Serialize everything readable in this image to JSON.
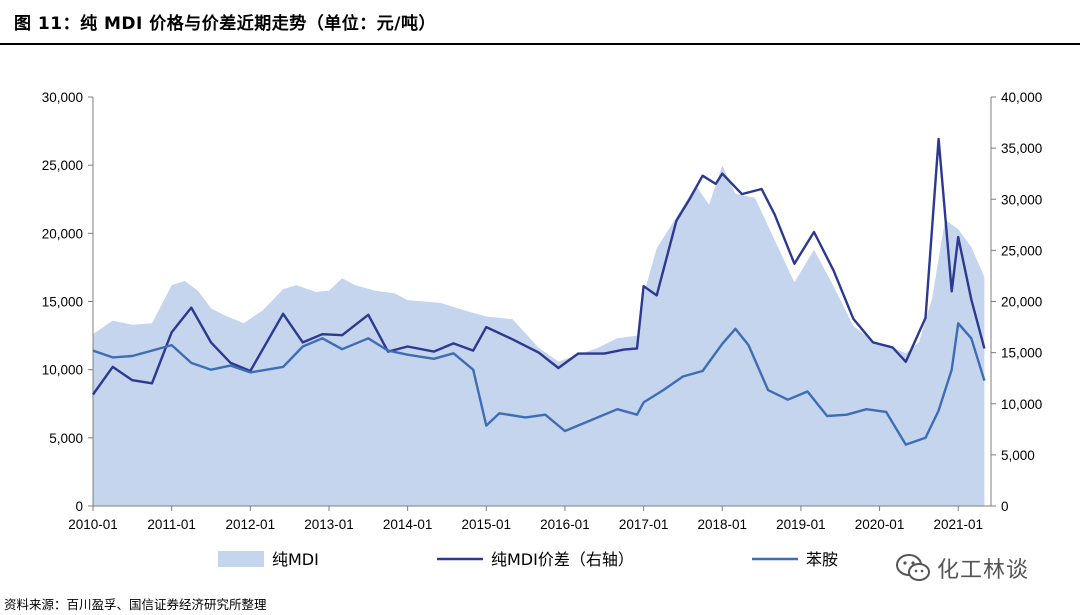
{
  "header": {
    "title": "图 11：纯 MDI 价格与价差近期走势（单位：元/吨）"
  },
  "footer": {
    "source": "资料来源：百川盈孚、国信证券经济研究所整理"
  },
  "watermark": {
    "text": "化工林谈",
    "icon": "wechat-icon"
  },
  "colors": {
    "area": "#c5d5ee",
    "spread": "#2b3990",
    "aniline": "#3f6db3",
    "axis": "#7f7f7f"
  },
  "chart_data": {
    "type": "line",
    "x_tick_labels": [
      "2010-01",
      "2011-01",
      "2012-01",
      "2013-01",
      "2014-01",
      "2015-01",
      "2016-01",
      "2017-01",
      "2018-01",
      "2019-01",
      "2020-01",
      "2021-01"
    ],
    "x_range": [
      "2010-01",
      "2021-06"
    ],
    "y_left": {
      "ticks": [
        "0",
        "5,000",
        "10,000",
        "15,000",
        "20,000",
        "25,000",
        "30,000"
      ],
      "range": [
        0,
        30000
      ]
    },
    "y_right": {
      "ticks": [
        "0",
        "5,000",
        "10,000",
        "15,000",
        "20,000",
        "25,000",
        "30,000",
        "35,000",
        "40,000"
      ],
      "range": [
        0,
        40000
      ]
    },
    "legend_position": "bottom",
    "series": [
      {
        "name": "纯MDI",
        "kind": "area",
        "axis": "left",
        "points": [
          [
            "2010-01",
            12600
          ],
          [
            "2010-04",
            13600
          ],
          [
            "2010-07",
            13300
          ],
          [
            "2010-10",
            13400
          ],
          [
            "2011-01",
            16200
          ],
          [
            "2011-03",
            16500
          ],
          [
            "2011-05",
            15800
          ],
          [
            "2011-07",
            14500
          ],
          [
            "2011-09",
            14000
          ],
          [
            "2011-12",
            13400
          ],
          [
            "2012-03",
            14400
          ],
          [
            "2012-06",
            15900
          ],
          [
            "2012-08",
            16200
          ],
          [
            "2012-11",
            15700
          ],
          [
            "2013-01",
            15800
          ],
          [
            "2013-03",
            16700
          ],
          [
            "2013-05",
            16200
          ],
          [
            "2013-08",
            15800
          ],
          [
            "2013-11",
            15600
          ],
          [
            "2014-01",
            15100
          ],
          [
            "2014-06",
            14900
          ],
          [
            "2014-10",
            14300
          ],
          [
            "2015-01",
            13900
          ],
          [
            "2015-05",
            13700
          ],
          [
            "2015-09",
            11600
          ],
          [
            "2015-12",
            10600
          ],
          [
            "2016-03",
            11100
          ],
          [
            "2016-06",
            11600
          ],
          [
            "2016-09",
            12300
          ],
          [
            "2016-12",
            12500
          ],
          [
            "2017-01",
            15500
          ],
          [
            "2017-03",
            18900
          ],
          [
            "2017-06",
            21200
          ],
          [
            "2017-09",
            23500
          ],
          [
            "2017-11",
            22100
          ],
          [
            "2018-01",
            25000
          ],
          [
            "2018-03",
            22900
          ],
          [
            "2018-06",
            22600
          ],
          [
            "2018-09",
            19500
          ],
          [
            "2018-12",
            16400
          ],
          [
            "2019-03",
            18800
          ],
          [
            "2019-06",
            16100
          ],
          [
            "2019-09",
            13200
          ],
          [
            "2019-12",
            12100
          ],
          [
            "2020-03",
            11600
          ],
          [
            "2020-05",
            11200
          ],
          [
            "2020-07",
            12000
          ],
          [
            "2020-09",
            15200
          ],
          [
            "2020-11",
            21000
          ],
          [
            "2021-01",
            20300
          ],
          [
            "2021-03",
            19000
          ],
          [
            "2021-05",
            16800
          ]
        ]
      },
      {
        "name": "纯MDI价差（右轴）",
        "kind": "line",
        "axis": "right",
        "points": [
          [
            "2010-01",
            10900
          ],
          [
            "2010-04",
            13600
          ],
          [
            "2010-07",
            12300
          ],
          [
            "2010-10",
            12000
          ],
          [
            "2011-01",
            17000
          ],
          [
            "2011-04",
            19400
          ],
          [
            "2011-07",
            16000
          ],
          [
            "2011-10",
            14000
          ],
          [
            "2012-01",
            13200
          ],
          [
            "2012-06",
            18800
          ],
          [
            "2012-09",
            16000
          ],
          [
            "2012-12",
            16800
          ],
          [
            "2013-03",
            16700
          ],
          [
            "2013-07",
            18700
          ],
          [
            "2013-10",
            15100
          ],
          [
            "2014-01",
            15600
          ],
          [
            "2014-05",
            15100
          ],
          [
            "2014-08",
            15900
          ],
          [
            "2014-11",
            15200
          ],
          [
            "2015-01",
            17500
          ],
          [
            "2015-05",
            16300
          ],
          [
            "2015-09",
            15000
          ],
          [
            "2015-12",
            13500
          ],
          [
            "2016-03",
            14900
          ],
          [
            "2016-07",
            14900
          ],
          [
            "2016-10",
            15300
          ],
          [
            "2016-12",
            15400
          ],
          [
            "2017-01",
            21500
          ],
          [
            "2017-03",
            20600
          ],
          [
            "2017-06",
            27900
          ],
          [
            "2017-08",
            30000
          ],
          [
            "2017-10",
            32300
          ],
          [
            "2017-12",
            31500
          ],
          [
            "2018-01",
            32500
          ],
          [
            "2018-04",
            30500
          ],
          [
            "2018-07",
            31000
          ],
          [
            "2018-09",
            28500
          ],
          [
            "2018-12",
            23700
          ],
          [
            "2019-03",
            26800
          ],
          [
            "2019-06",
            23000
          ],
          [
            "2019-09",
            18300
          ],
          [
            "2019-12",
            16000
          ],
          [
            "2020-03",
            15500
          ],
          [
            "2020-05",
            14100
          ],
          [
            "2020-08",
            18400
          ],
          [
            "2020-10",
            35900
          ],
          [
            "2020-12",
            21000
          ],
          [
            "2021-01",
            26300
          ],
          [
            "2021-03",
            20200
          ],
          [
            "2021-05",
            15400
          ]
        ]
      },
      {
        "name": "苯胺",
        "kind": "line",
        "axis": "left",
        "points": [
          [
            "2010-01",
            11400
          ],
          [
            "2010-04",
            10900
          ],
          [
            "2010-07",
            11000
          ],
          [
            "2010-10",
            11400
          ],
          [
            "2011-01",
            11800
          ],
          [
            "2011-04",
            10500
          ],
          [
            "2011-07",
            10000
          ],
          [
            "2011-10",
            10300
          ],
          [
            "2012-01",
            9800
          ],
          [
            "2012-06",
            10200
          ],
          [
            "2012-09",
            11700
          ],
          [
            "2012-12",
            12300
          ],
          [
            "2013-03",
            11500
          ],
          [
            "2013-07",
            12300
          ],
          [
            "2013-10",
            11400
          ],
          [
            "2014-01",
            11100
          ],
          [
            "2014-05",
            10800
          ],
          [
            "2014-08",
            11200
          ],
          [
            "2014-11",
            10000
          ],
          [
            "2015-01",
            5900
          ],
          [
            "2015-03",
            6800
          ],
          [
            "2015-07",
            6500
          ],
          [
            "2015-10",
            6700
          ],
          [
            "2016-01",
            5500
          ],
          [
            "2016-05",
            6300
          ],
          [
            "2016-09",
            7100
          ],
          [
            "2016-12",
            6700
          ],
          [
            "2017-01",
            7600
          ],
          [
            "2017-04",
            8500
          ],
          [
            "2017-07",
            9500
          ],
          [
            "2017-10",
            9900
          ],
          [
            "2018-01",
            11900
          ],
          [
            "2018-03",
            13000
          ],
          [
            "2018-05",
            11800
          ],
          [
            "2018-08",
            8500
          ],
          [
            "2018-11",
            7800
          ],
          [
            "2019-02",
            8400
          ],
          [
            "2019-05",
            6600
          ],
          [
            "2019-08",
            6700
          ],
          [
            "2019-11",
            7100
          ],
          [
            "2020-02",
            6900
          ],
          [
            "2020-05",
            4500
          ],
          [
            "2020-08",
            5000
          ],
          [
            "2020-10",
            7000
          ],
          [
            "2020-12",
            10000
          ],
          [
            "2021-01",
            13400
          ],
          [
            "2021-03",
            12300
          ],
          [
            "2021-05",
            9200
          ]
        ]
      }
    ]
  }
}
